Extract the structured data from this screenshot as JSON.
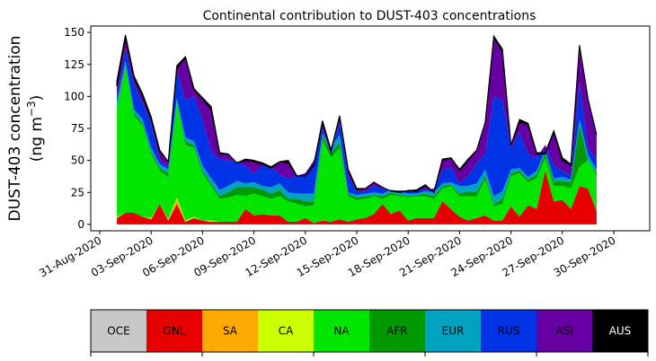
{
  "chart_data": {
    "type": "area",
    "title": "Continental contribution to DUST-403 concentrations",
    "ylabel_line1": "DUST-403 concentration",
    "ylabel_line2_prefix": "(ng m",
    "ylabel_line2_exp": "−3",
    "ylabel_line2_suffix": ")",
    "ylim": [
      -5,
      155
    ],
    "yticks": [
      0,
      25,
      50,
      75,
      100,
      125,
      150
    ],
    "x_start_date": "2020-09-01",
    "x_end_date": "2020-09-30",
    "x_tick_labels": [
      "31-Aug-2020",
      "03-Sep-2020",
      "06-Sep-2020",
      "09-Sep-2020",
      "12-Sep-2020",
      "15-Sep-2020",
      "18-Sep-2020",
      "21-Sep-2020",
      "24-Sep-2020",
      "27-Sep-2020",
      "30-Sep-2020"
    ],
    "legend": [
      {
        "name": "OCE",
        "color": "#c8c8c8",
        "text_color": "#000000"
      },
      {
        "name": "GNL",
        "color": "#e60000",
        "text_color": "#000000"
      },
      {
        "name": "SA",
        "color": "#ffaa00",
        "text_color": "#000000"
      },
      {
        "name": "CA",
        "color": "#ccff00",
        "text_color": "#000000"
      },
      {
        "name": "NA",
        "color": "#00e600",
        "text_color": "#000000"
      },
      {
        "name": "AFR",
        "color": "#009900",
        "text_color": "#000000"
      },
      {
        "name": "EUR",
        "color": "#00a3bf",
        "text_color": "#000000"
      },
      {
        "name": "RUS",
        "color": "#0033e6",
        "text_color": "#000000"
      },
      {
        "name": "ASI",
        "color": "#6600a3",
        "text_color": "#000000"
      },
      {
        "name": "AUS",
        "color": "#000000",
        "text_color": "#ffffff"
      }
    ],
    "stack_order": [
      "GNL",
      "SA",
      "CA",
      "NA",
      "AFR",
      "EUR",
      "RUS",
      "ASI",
      "AUS"
    ],
    "cumulative": {
      "GNL": [
        5,
        9,
        9,
        6,
        4,
        16,
        3,
        16,
        2,
        5,
        3,
        2,
        2,
        2,
        2,
        12,
        7,
        8,
        7,
        7,
        2,
        2,
        5,
        1,
        3,
        2,
        4,
        2,
        4,
        5,
        8,
        16,
        8,
        11,
        3,
        5,
        5,
        5,
        18,
        12,
        6,
        3,
        5,
        7,
        3,
        3,
        14,
        6,
        15,
        12,
        42,
        18,
        19,
        12,
        30,
        28,
        10
      ],
      "SA": [
        5,
        9,
        9,
        6,
        4,
        16,
        3,
        20,
        2,
        5,
        3,
        2,
        2,
        2,
        2,
        12,
        7,
        8,
        7,
        7,
        2,
        2,
        5,
        1,
        3,
        2,
        4,
        2,
        4,
        5,
        8,
        16,
        8,
        11,
        3,
        5,
        5,
        5,
        18,
        12,
        6,
        3,
        5,
        7,
        3,
        3,
        14,
        6,
        15,
        12,
        42,
        18,
        19,
        12,
        30,
        28,
        10
      ],
      "CA": [
        6,
        9,
        9,
        6,
        5,
        16,
        4,
        21,
        3,
        6,
        3,
        3,
        2,
        2,
        2,
        12,
        7,
        8,
        7,
        7,
        2,
        2,
        5,
        1,
        3,
        2,
        4,
        2,
        4,
        5,
        8,
        16,
        8,
        11,
        3,
        5,
        5,
        5,
        18,
        12,
        6,
        3,
        5,
        7,
        3,
        3,
        14,
        6,
        15,
        12,
        42,
        18,
        19,
        12,
        30,
        28,
        10
      ],
      "NA": [
        90,
        122,
        85,
        77,
        55,
        42,
        37,
        95,
        62,
        60,
        40,
        30,
        20,
        21,
        23,
        22,
        24,
        22,
        20,
        22,
        18,
        16,
        14,
        15,
        66,
        52,
        60,
        22,
        19,
        20,
        22,
        20,
        23,
        22,
        21,
        22,
        22,
        20,
        28,
        30,
        22,
        22,
        22,
        35,
        14,
        16,
        38,
        40,
        33,
        36,
        52,
        30,
        30,
        28,
        45,
        50,
        38
      ],
      "AFR": [
        92,
        124,
        87,
        79,
        57,
        44,
        40,
        96,
        65,
        62,
        42,
        32,
        22,
        25,
        29,
        29,
        29,
        27,
        24,
        27,
        20,
        20,
        18,
        18,
        69,
        56,
        64,
        24,
        21,
        22,
        23,
        22,
        25,
        23,
        22,
        23,
        24,
        22,
        30,
        31,
        24,
        26,
        25,
        38,
        16,
        20,
        40,
        42,
        35,
        39,
        56,
        34,
        34,
        33,
        78,
        50,
        40
      ],
      "EUR": [
        96,
        128,
        90,
        82,
        60,
        47,
        43,
        99,
        68,
        65,
        46,
        36,
        27,
        30,
        34,
        32,
        33,
        30,
        29,
        32,
        25,
        24,
        24,
        24,
        71,
        60,
        70,
        25,
        23,
        24,
        25,
        24,
        27,
        26,
        24,
        24,
        26,
        25,
        32,
        33,
        30,
        30,
        32,
        43,
        22,
        26,
        43,
        44,
        37,
        42,
        58,
        36,
        37,
        35,
        82,
        54,
        43
      ],
      "RUS": [
        100,
        137,
        110,
        95,
        80,
        50,
        45,
        120,
        97,
        100,
        82,
        58,
        51,
        50,
        49,
        46,
        40,
        46,
        45,
        39,
        36,
        38,
        40,
        50,
        75,
        55,
        80,
        38,
        26,
        26,
        30,
        28,
        26,
        25,
        27,
        27,
        27,
        28,
        42,
        45,
        32,
        38,
        48,
        55,
        100,
        97,
        60,
        72,
        55,
        52,
        62,
        46,
        42,
        38,
        110,
        60,
        50
      ],
      "ASI": [
        108,
        146,
        114,
        100,
        82,
        57,
        49,
        122,
        130,
        105,
        98,
        90,
        55,
        55,
        48,
        50,
        49,
        47,
        44,
        49,
        48,
        38,
        38,
        46,
        79,
        58,
        84,
        42,
        27,
        28,
        33,
        29,
        26,
        25,
        26,
        26,
        30,
        25,
        50,
        52,
        42,
        50,
        58,
        80,
        146,
        135,
        62,
        80,
        78,
        55,
        55,
        72,
        50,
        46,
        140,
        98,
        70
      ],
      "AUS": [
        112,
        148,
        116,
        102,
        84,
        58,
        49,
        124,
        131,
        106,
        99,
        92,
        56,
        55,
        48,
        51,
        50,
        48,
        45,
        49,
        50,
        38,
        38,
        47,
        81,
        58,
        85,
        43,
        28,
        28,
        33,
        29,
        26,
        26,
        26,
        27,
        31,
        25,
        51,
        52,
        43,
        51,
        58,
        80,
        147,
        137,
        62,
        82,
        79,
        56,
        56,
        73,
        52,
        47,
        140,
        98,
        70
      ]
    },
    "x_days": [
      1,
      1.5,
      2,
      2.5,
      3,
      3.5,
      4,
      4.5,
      5,
      5.5,
      6,
      6.5,
      7,
      7.5,
      8,
      8.5,
      9,
      9.5,
      10,
      10.5,
      11,
      11.5,
      12,
      12.5,
      13,
      13.5,
      14,
      14.5,
      15,
      15.5,
      16,
      16.5,
      17,
      17.5,
      18,
      18.5,
      19,
      19.5,
      20,
      20.5,
      21,
      21.5,
      22,
      22.5,
      23,
      23.5,
      24,
      24.5,
      25,
      25.5,
      26,
      26.5,
      27,
      27.5,
      28,
      28.5,
      29
    ]
  }
}
